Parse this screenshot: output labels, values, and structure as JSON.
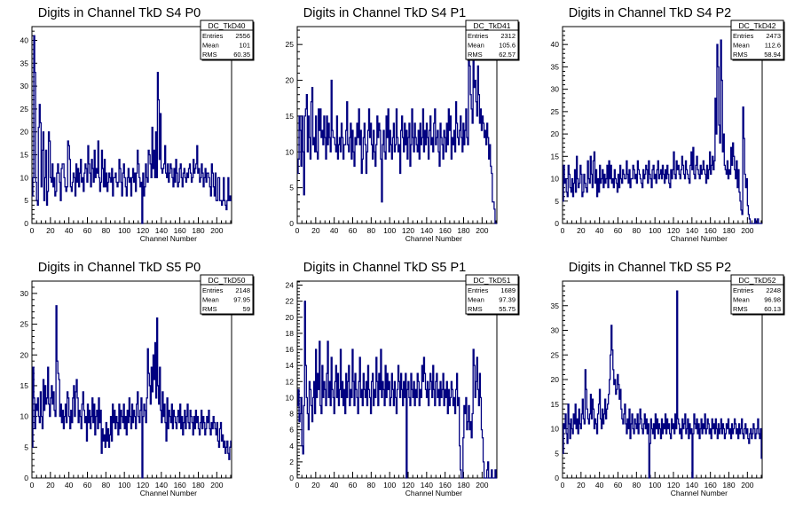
{
  "chart_data": [
    {
      "type": "histogram",
      "title": "Digits in Channel TkD S4 P0",
      "xlabel": "Channel Number",
      "ylabel": "",
      "xlim": [
        0,
        216
      ],
      "ylim": [
        0,
        43
      ],
      "xticks": [
        0,
        20,
        40,
        60,
        80,
        100,
        120,
        140,
        160,
        180,
        200
      ],
      "yticks": [
        0,
        5,
        10,
        15,
        20,
        25,
        30,
        35,
        40
      ],
      "stats": {
        "name": "DC_TkD40",
        "entries": "2556",
        "mean": "101",
        "rms": "60.35"
      },
      "values": [
        6,
        10,
        41,
        33,
        9,
        5,
        4,
        21,
        26,
        22,
        8,
        16,
        20,
        5,
        10,
        16,
        4,
        7,
        20,
        18,
        10,
        9,
        13,
        8,
        10,
        6,
        7,
        11,
        13,
        11,
        9,
        5,
        12,
        13,
        13,
        10,
        8,
        7,
        8,
        18,
        17,
        14,
        8,
        7,
        9,
        11,
        10,
        6,
        13,
        9,
        12,
        8,
        11,
        14,
        9,
        10,
        7,
        11,
        13,
        12,
        9,
        17,
        13,
        11,
        8,
        14,
        12,
        9,
        16,
        10,
        12,
        11,
        18,
        10,
        7,
        9,
        16,
        12,
        8,
        14,
        8,
        11,
        7,
        9,
        11,
        10,
        9,
        12,
        6,
        10,
        10,
        11,
        9,
        8,
        9,
        14,
        12,
        9,
        6,
        11,
        13,
        10,
        8,
        6,
        10,
        12,
        9,
        10,
        6,
        10,
        12,
        9,
        11,
        7,
        11,
        16,
        13,
        10,
        8,
        9,
        0,
        11,
        6,
        8,
        13,
        10,
        9,
        16,
        15,
        13,
        10,
        21,
        12,
        16,
        10,
        20,
        10,
        33,
        27,
        14,
        24,
        12,
        11,
        12,
        13,
        17,
        11,
        10,
        13,
        9,
        11,
        13,
        12,
        10,
        8,
        12,
        9,
        14,
        11,
        8,
        9,
        12,
        13,
        10,
        8,
        11,
        12,
        10,
        9,
        11,
        10,
        12,
        13,
        11,
        9,
        10,
        14,
        11,
        12,
        13,
        17,
        11,
        12,
        9,
        10,
        13,
        11,
        8,
        10,
        12,
        9,
        11,
        11,
        10,
        8,
        6,
        13,
        11,
        8,
        6,
        11,
        5,
        5,
        10,
        10,
        5,
        5,
        4,
        5,
        10,
        5,
        4,
        3,
        5,
        10,
        5,
        6,
        5
      ]
    },
    {
      "type": "histogram",
      "title": "Digits in Channel TkD S4 P1",
      "xlabel": "Channel Number",
      "ylabel": "",
      "xlim": [
        0,
        216
      ],
      "ylim": [
        0,
        27.5
      ],
      "xticks": [
        0,
        20,
        40,
        60,
        80,
        100,
        120,
        140,
        160,
        180,
        200
      ],
      "yticks": [
        0,
        5,
        10,
        15,
        20,
        25
      ],
      "stats": {
        "name": "DC_TkD41",
        "entries": "2312",
        "mean": "105.6",
        "rms": "62.57"
      },
      "values": [
        7,
        9,
        15,
        13,
        8,
        15,
        10,
        4,
        15,
        16,
        18,
        10,
        15,
        12,
        9,
        17,
        19,
        11,
        12,
        10,
        15,
        10,
        9,
        16,
        13,
        16,
        12,
        13,
        11,
        15,
        12,
        9,
        15,
        11,
        14,
        12,
        10,
        20,
        13,
        12,
        12,
        11,
        10,
        15,
        9,
        11,
        12,
        10,
        14,
        12,
        9,
        11,
        11,
        13,
        17,
        11,
        10,
        12,
        14,
        9,
        13,
        10,
        8,
        12,
        11,
        14,
        12,
        16,
        11,
        13,
        7,
        9,
        12,
        14,
        11,
        7,
        10,
        13,
        16,
        12,
        14,
        11,
        9,
        13,
        10,
        8,
        11,
        15,
        12,
        14,
        13,
        9,
        3,
        11,
        13,
        10,
        9,
        15,
        12,
        16,
        10,
        13,
        11,
        9,
        12,
        14,
        10,
        11,
        16,
        12,
        10,
        11,
        7,
        13,
        15,
        12,
        10,
        14,
        11,
        13,
        9,
        12,
        14,
        8,
        11,
        16,
        12,
        10,
        14,
        12,
        11,
        10,
        13,
        9,
        14,
        11,
        12,
        16,
        10,
        13,
        11,
        14,
        12,
        9,
        13,
        15,
        11,
        12,
        10,
        14,
        16,
        11,
        12,
        13,
        10,
        8,
        14,
        12,
        11,
        9,
        13,
        12,
        10,
        14,
        11,
        16,
        13,
        15,
        9,
        12,
        11,
        13,
        10,
        17,
        14,
        12,
        11,
        13,
        15,
        12,
        10,
        14,
        11,
        13,
        16,
        12,
        11,
        27,
        22,
        18,
        16,
        14,
        25,
        19,
        20,
        17,
        15,
        22,
        18,
        14,
        16,
        13,
        15,
        14,
        12,
        13,
        11,
        14,
        12,
        9,
        11,
        8,
        7,
        3,
        3,
        2,
        0,
        0
      ]
    },
    {
      "type": "histogram",
      "title": "Digits in Channel TkD S4 P2",
      "xlabel": "Channel Number",
      "ylabel": "",
      "xlim": [
        0,
        216
      ],
      "ylim": [
        0,
        44
      ],
      "xticks": [
        0,
        20,
        40,
        60,
        80,
        100,
        120,
        140,
        160,
        180,
        200
      ],
      "yticks": [
        0,
        5,
        10,
        15,
        20,
        25,
        30,
        35,
        40
      ],
      "stats": {
        "name": "DC_TkD42",
        "entries": "2473",
        "mean": "112.6",
        "rms": "58.94"
      },
      "values": [
        5,
        13,
        9,
        10,
        7,
        6,
        13,
        11,
        8,
        7,
        10,
        6,
        9,
        12,
        7,
        15,
        10,
        8,
        9,
        13,
        11,
        6,
        7,
        11,
        9,
        8,
        7,
        14,
        10,
        9,
        15,
        11,
        8,
        14,
        16,
        9,
        12,
        6,
        10,
        7,
        13,
        9,
        10,
        12,
        8,
        11,
        9,
        10,
        13,
        8,
        14,
        10,
        13,
        9,
        10,
        8,
        12,
        10,
        9,
        7,
        11,
        8,
        13,
        10,
        9,
        12,
        11,
        10,
        10,
        14,
        11,
        9,
        12,
        8,
        10,
        10,
        13,
        12,
        10,
        11,
        9,
        14,
        12,
        11,
        10,
        9,
        8,
        12,
        10,
        11,
        13,
        12,
        9,
        14,
        11,
        10,
        8,
        12,
        13,
        10,
        11,
        9,
        12,
        14,
        10,
        11,
        12,
        10,
        13,
        11,
        9,
        12,
        10,
        13,
        11,
        9,
        8,
        12,
        10,
        12,
        16,
        11,
        10,
        14,
        12,
        13,
        11,
        10,
        12,
        15,
        13,
        11,
        10,
        14,
        12,
        11,
        10,
        9,
        13,
        16,
        12,
        17,
        11,
        10,
        13,
        15,
        12,
        11,
        10,
        13,
        11,
        12,
        14,
        12,
        11,
        9,
        13,
        10,
        12,
        16,
        11,
        13,
        15,
        12,
        14,
        28,
        20,
        40,
        35,
        22,
        18,
        41,
        32,
        16,
        20,
        13,
        12,
        11,
        14,
        10,
        12,
        11,
        17,
        13,
        18,
        15,
        12,
        10,
        14,
        8,
        12,
        7,
        5,
        3,
        2,
        26,
        19,
        11,
        8,
        10,
        4,
        2,
        1,
        0,
        0,
        0,
        0,
        0,
        1,
        0,
        0,
        1,
        0,
        0,
        0,
        0
      ]
    },
    {
      "type": "histogram",
      "title": "Digits in Channel TkD S5 P0",
      "xlabel": "Channel Number",
      "ylabel": "",
      "xlim": [
        0,
        216
      ],
      "ylim": [
        0,
        32
      ],
      "xticks": [
        0,
        20,
        40,
        60,
        80,
        100,
        120,
        140,
        160,
        180,
        200
      ],
      "yticks": [
        0,
        5,
        10,
        15,
        20,
        25,
        30
      ],
      "stats": {
        "name": "DC_TkD50",
        "entries": "2148",
        "mean": "97.95",
        "rms": "59"
      },
      "values": [
        5,
        18,
        13,
        8,
        12,
        11,
        13,
        10,
        9,
        14,
        10,
        8,
        16,
        11,
        15,
        12,
        13,
        18,
        12,
        10,
        13,
        15,
        12,
        14,
        11,
        10,
        28,
        19,
        17,
        16,
        10,
        12,
        9,
        11,
        8,
        10,
        12,
        9,
        14,
        13,
        10,
        8,
        11,
        9,
        13,
        15,
        10,
        14,
        16,
        13,
        9,
        11,
        10,
        8,
        12,
        14,
        11,
        9,
        10,
        6,
        12,
        9,
        11,
        8,
        10,
        13,
        9,
        12,
        7,
        10,
        11,
        8,
        13,
        9,
        11,
        4,
        8,
        6,
        7,
        5,
        9,
        6,
        8,
        5,
        7,
        10,
        6,
        12,
        9,
        11,
        8,
        10,
        9,
        7,
        12,
        8,
        11,
        10,
        9,
        12,
        8,
        10,
        7,
        11,
        9,
        13,
        10,
        8,
        12,
        9,
        11,
        10,
        8,
        12,
        14,
        10,
        9,
        11,
        13,
        0,
        10,
        12,
        11,
        9,
        13,
        21,
        17,
        15,
        12,
        18,
        14,
        20,
        16,
        22,
        13,
        26,
        15,
        12,
        18,
        11,
        9,
        14,
        10,
        12,
        9,
        6,
        13,
        8,
        11,
        10,
        9,
        12,
        8,
        11,
        10,
        9,
        8,
        10,
        11,
        9,
        12,
        8,
        10,
        7,
        9,
        11,
        8,
        10,
        12,
        9,
        8,
        11,
        10,
        9,
        7,
        10,
        8,
        11,
        9,
        10,
        8,
        7,
        9,
        11,
        8,
        10,
        9,
        7,
        8,
        10,
        9,
        11,
        8,
        7,
        9,
        8,
        10,
        9,
        8,
        7,
        9,
        6,
        5,
        8,
        9,
        6,
        7,
        5,
        6,
        4,
        5,
        6,
        4,
        3,
        5,
        6
      ]
    },
    {
      "type": "histogram",
      "title": "Digits in Channel TkD S5 P1",
      "xlabel": "Channel Number",
      "ylabel": "",
      "xlim": [
        0,
        216
      ],
      "ylim": [
        0,
        24.5
      ],
      "xticks": [
        0,
        20,
        40,
        60,
        80,
        100,
        120,
        140,
        160,
        180,
        200
      ],
      "yticks": [
        0,
        2,
        4,
        6,
        8,
        10,
        12,
        14,
        16,
        18,
        20,
        22,
        24
      ],
      "stats": {
        "name": "DC_TkD51",
        "entries": "1689",
        "mean": "97.39",
        "rms": "55.75"
      },
      "values": [
        9,
        11,
        7,
        8,
        10,
        4,
        3,
        9,
        22,
        14,
        10,
        8,
        6,
        12,
        11,
        9,
        7,
        10,
        12,
        8,
        16,
        10,
        13,
        11,
        17,
        9,
        8,
        14,
        10,
        12,
        11,
        9,
        13,
        17,
        10,
        12,
        9,
        15,
        11,
        10,
        8,
        12,
        14,
        10,
        13,
        9,
        11,
        16,
        10,
        12,
        9,
        11,
        8,
        13,
        10,
        12,
        14,
        9,
        11,
        10,
        16,
        12,
        9,
        13,
        11,
        10,
        8,
        12,
        15,
        10,
        11,
        9,
        13,
        11,
        10,
        12,
        9,
        14,
        11,
        10,
        8,
        12,
        13,
        9,
        11,
        10,
        15,
        12,
        9,
        13,
        11,
        16,
        10,
        12,
        11,
        9,
        14,
        10,
        13,
        11,
        12,
        9,
        10,
        13,
        11,
        9,
        12,
        10,
        8,
        11,
        14,
        12,
        10,
        13,
        11,
        9,
        12,
        10,
        13,
        0,
        11,
        12,
        10,
        9,
        13,
        11,
        10,
        12,
        9,
        11,
        10,
        13,
        12,
        9,
        11,
        10,
        14,
        12,
        15,
        13,
        11,
        10,
        12,
        9,
        11,
        13,
        12,
        10,
        14,
        11,
        9,
        12,
        13,
        10,
        11,
        9,
        12,
        10,
        11,
        13,
        9,
        11,
        10,
        12,
        8,
        11,
        9,
        10,
        12,
        11,
        9,
        10,
        8,
        11,
        13,
        9,
        10,
        4,
        1,
        0,
        0,
        5,
        9,
        8,
        10,
        6,
        7,
        9,
        6,
        7,
        5,
        8,
        16,
        14,
        10,
        12,
        15,
        11,
        9,
        13,
        10,
        6,
        5,
        2,
        0,
        0,
        0,
        1,
        2,
        0,
        0,
        0,
        1,
        0,
        0,
        0,
        1,
        0
      ]
    },
    {
      "type": "histogram",
      "title": "Digits in Channel TkD S5 P2",
      "xlabel": "Channel Number",
      "ylabel": "",
      "xlim": [
        0,
        216
      ],
      "ylim": [
        0,
        40
      ],
      "xticks": [
        0,
        20,
        40,
        60,
        80,
        100,
        120,
        140,
        160,
        180,
        200
      ],
      "yticks": [
        0,
        5,
        10,
        15,
        20,
        25,
        30,
        35
      ],
      "stats": {
        "name": "DC_TkD52",
        "entries": "2248",
        "mean": "96.98",
        "rms": "60.13"
      },
      "values": [
        5,
        11,
        10,
        13,
        9,
        7,
        15,
        11,
        8,
        12,
        10,
        9,
        13,
        11,
        15,
        10,
        12,
        9,
        14,
        11,
        10,
        13,
        16,
        12,
        11,
        22,
        18,
        14,
        12,
        11,
        13,
        17,
        12,
        16,
        14,
        10,
        12,
        11,
        9,
        13,
        15,
        18,
        12,
        10,
        14,
        11,
        13,
        16,
        12,
        14,
        15,
        17,
        20,
        25,
        31,
        26,
        22,
        19,
        20,
        17,
        18,
        21,
        19,
        16,
        18,
        14,
        12,
        11,
        13,
        15,
        11,
        9,
        12,
        10,
        14,
        8,
        11,
        13,
        10,
        9,
        12,
        11,
        10,
        13,
        9,
        11,
        14,
        12,
        10,
        9,
        11,
        13,
        10,
        12,
        9,
        11,
        0,
        7,
        12,
        10,
        9,
        11,
        8,
        13,
        10,
        12,
        9,
        11,
        10,
        8,
        12,
        9,
        11,
        10,
        13,
        9,
        12,
        10,
        11,
        9,
        8,
        12,
        10,
        11,
        9,
        13,
        10,
        38,
        12,
        11,
        9,
        10,
        8,
        12,
        10,
        11,
        13,
        9,
        10,
        12,
        8,
        11,
        9,
        10,
        0,
        9,
        13,
        11,
        10,
        12,
        9,
        11,
        8,
        10,
        12,
        9,
        11,
        10,
        13,
        9,
        10,
        12,
        11,
        9,
        10,
        8,
        12,
        10,
        11,
        9,
        12,
        10,
        8,
        11,
        9,
        10,
        12,
        9,
        11,
        10,
        8,
        9,
        11,
        10,
        12,
        9,
        10,
        8,
        11,
        9,
        10,
        12,
        11,
        9,
        10,
        8,
        11,
        9,
        10,
        12,
        9,
        8,
        10,
        11,
        9,
        10,
        8,
        7,
        9,
        10,
        8,
        9,
        11,
        10,
        8,
        9,
        10,
        12,
        9,
        8,
        10,
        4
      ]
    }
  ]
}
